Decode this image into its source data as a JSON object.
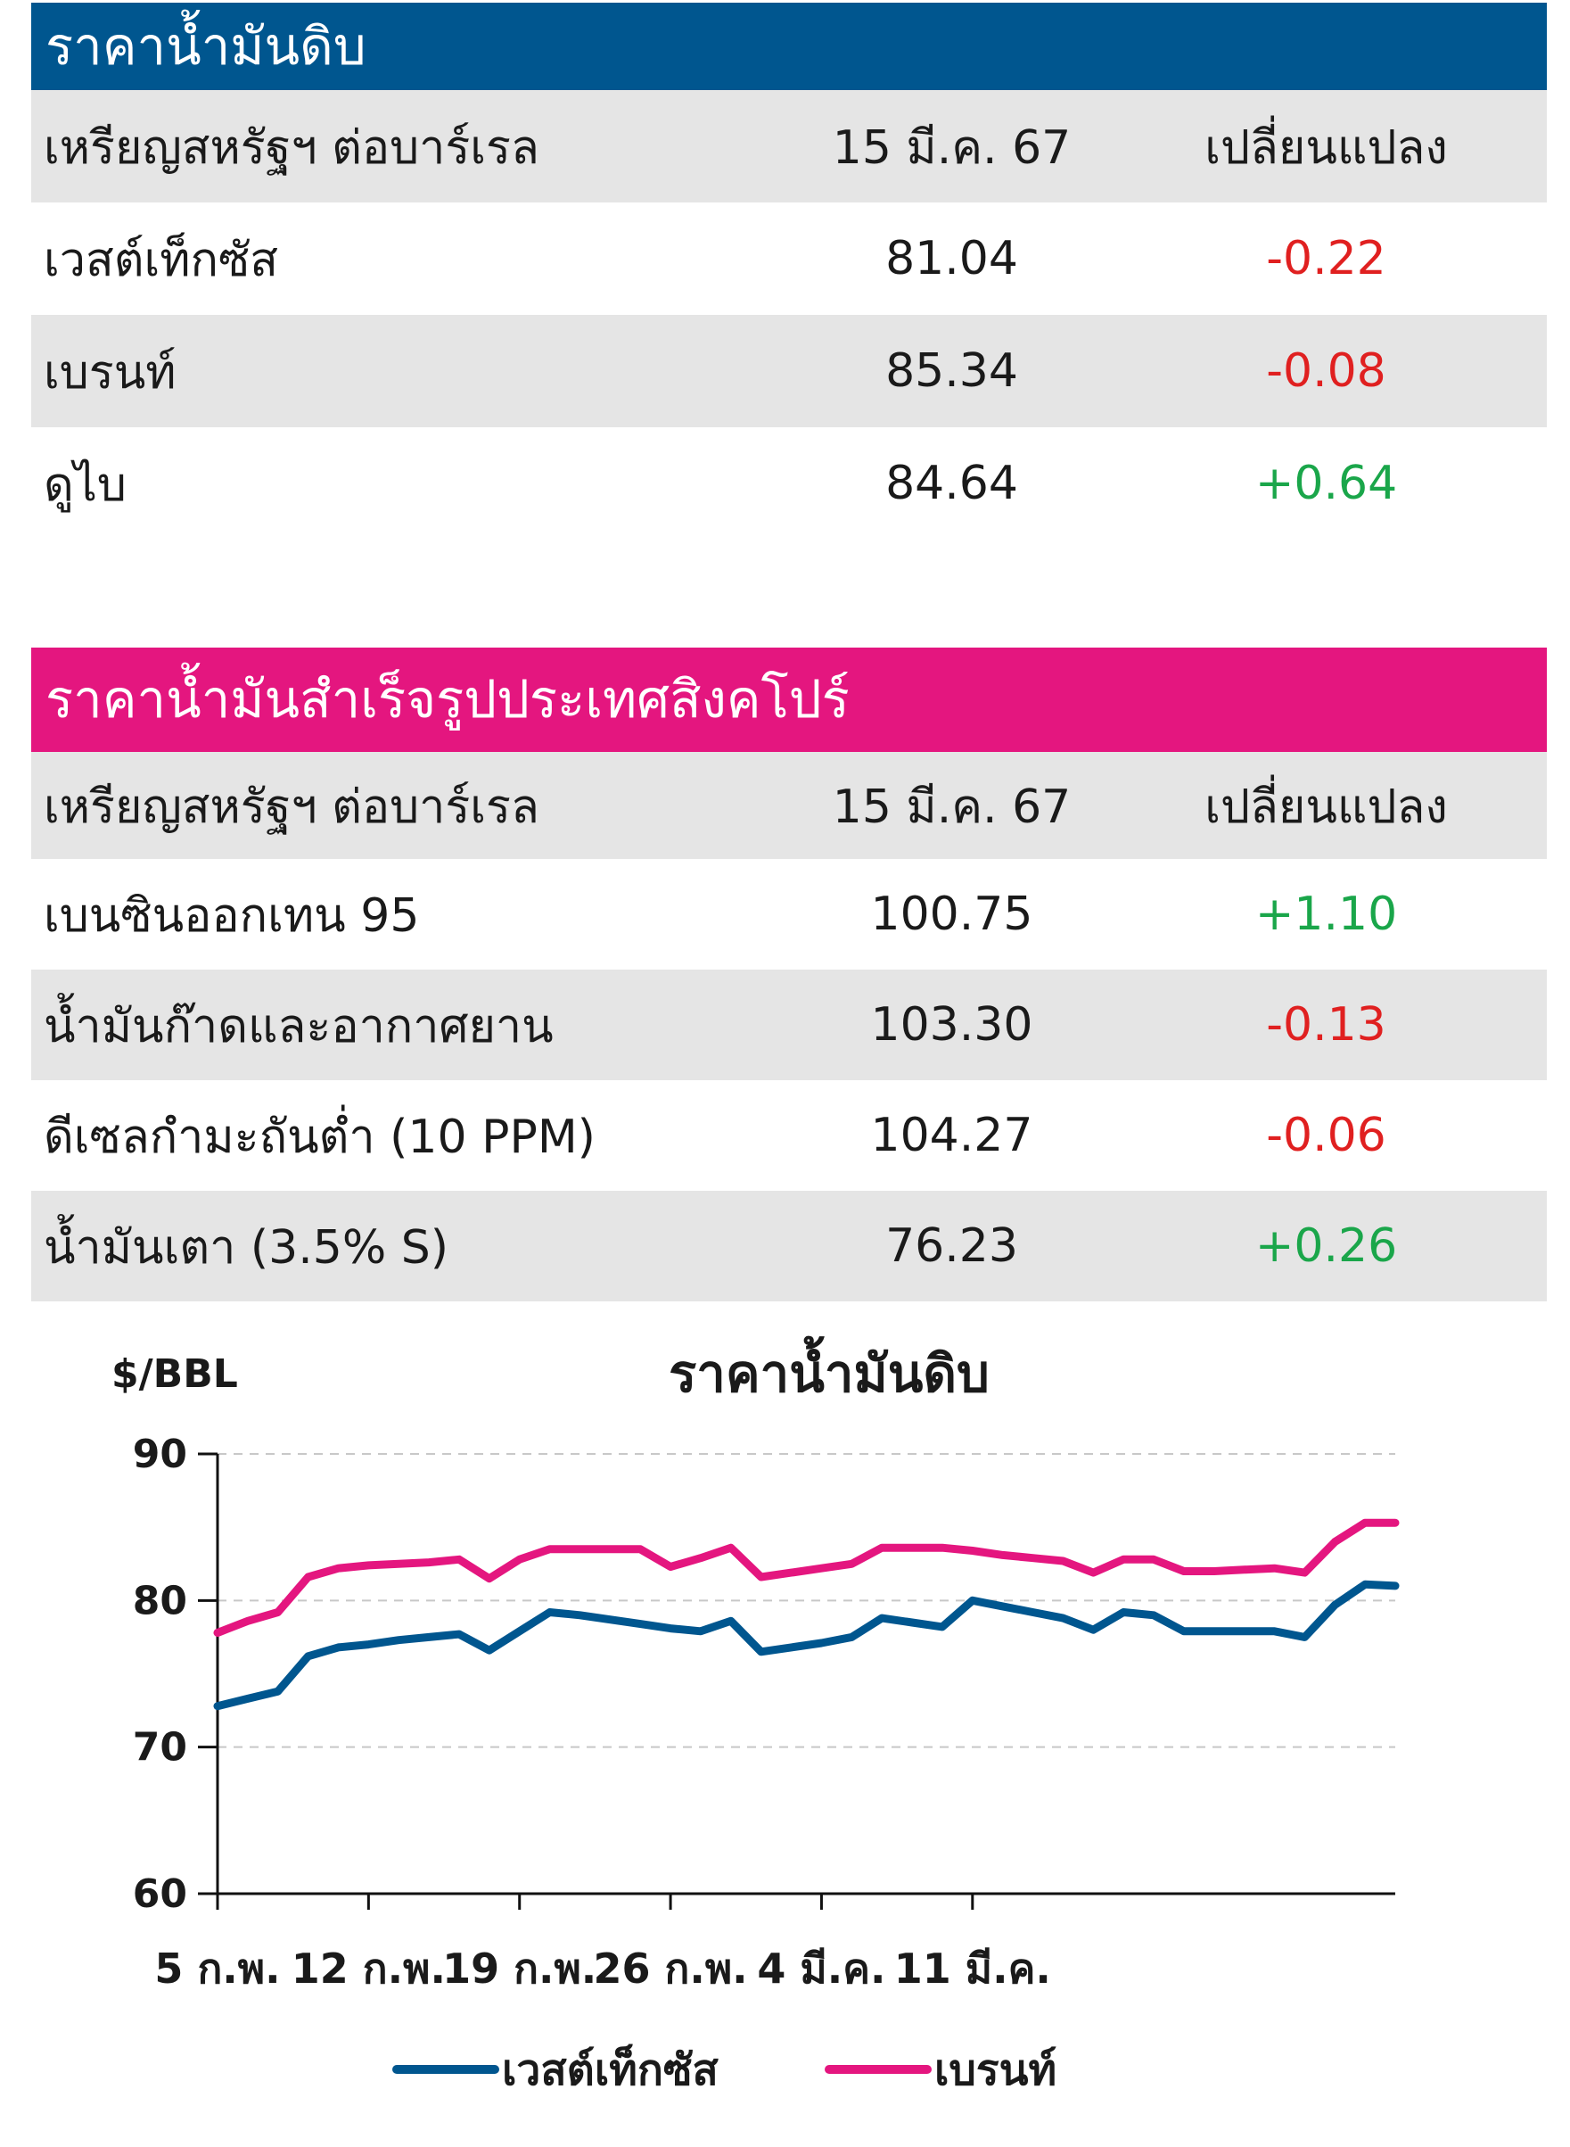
{
  "crude_table": {
    "title": "ราคาน้ำมันดิบ",
    "header": {
      "label": "เหรียญสหรัฐฯ ต่อบาร์เรล",
      "date": "15 มี.ค. 67",
      "change": "เปลี่ยนแปลง"
    },
    "rows": [
      {
        "name": "เวสต์เท็กซัส",
        "price": "81.04",
        "change": "-0.22"
      },
      {
        "name": "เบรนท์",
        "price": "85.34",
        "change": "-0.08"
      },
      {
        "name": "ดูไบ",
        "price": "84.64",
        "change": "+0.64"
      }
    ]
  },
  "singapore_table": {
    "title": "ราคาน้ำมันสำเร็จรูปประเทศสิงคโปร์",
    "header": {
      "label": "เหรียญสหรัฐฯ ต่อบาร์เรล",
      "date": "15 มี.ค. 67",
      "change": "เปลี่ยนแปลง"
    },
    "rows": [
      {
        "name": "เบนซินออกเทน 95",
        "price": "100.75",
        "change": "+1.10"
      },
      {
        "name": "น้ำมันก๊าดและอากาศยาน",
        "price": "103.30",
        "change": "-0.13"
      },
      {
        "name": "ดีเซลกำมะถันต่ำ (10 PPM)",
        "price": "104.27",
        "change": "-0.06"
      },
      {
        "name": "น้ำมันเตา (3.5% S)",
        "price": "76.23",
        "change": "+0.26"
      }
    ]
  },
  "colors": {
    "navy": "#00568f",
    "magenta": "#e4167f",
    "negative": "#e02020",
    "positive": "#1aa64a"
  },
  "chart_data": {
    "type": "line",
    "title": "ราคาน้ำมันดิบ",
    "ylabel": "$/BBL",
    "xlabel": "",
    "ylim": [
      60,
      90
    ],
    "yticks": [
      60,
      70,
      80,
      90
    ],
    "grid": "horizontal dashed",
    "legend_position": "bottom",
    "x_tick_labels": [
      "5 ก.พ.",
      "12 ก.พ.",
      "19 ก.พ.",
      "26 ก.พ.",
      "4 มี.ค.",
      "11 มี.ค."
    ],
    "series": [
      {
        "name": "เวสต์เท็กซัส",
        "color": "#00568f",
        "values": [
          72.8,
          73.3,
          73.8,
          76.2,
          76.8,
          77.0,
          77.3,
          77.5,
          77.7,
          76.6,
          77.9,
          79.2,
          79.0,
          78.7,
          78.4,
          78.1,
          77.9,
          78.6,
          76.5,
          76.8,
          77.1,
          77.5,
          78.8,
          78.5,
          78.2,
          80.0,
          79.6,
          79.2,
          78.8,
          78.0,
          79.2,
          79.0,
          77.9,
          77.9,
          77.9,
          77.9,
          77.5,
          79.7,
          81.1,
          81.0
        ]
      },
      {
        "name": "เบรนท์",
        "color": "#e4167f",
        "values": [
          77.8,
          78.6,
          79.2,
          81.6,
          82.2,
          82.4,
          82.5,
          82.6,
          82.8,
          81.5,
          82.8,
          83.5,
          83.5,
          83.5,
          83.5,
          82.3,
          82.9,
          83.6,
          81.6,
          81.9,
          82.2,
          82.5,
          83.6,
          83.6,
          83.6,
          83.4,
          83.1,
          82.9,
          82.7,
          81.9,
          82.8,
          82.8,
          82.0,
          82.0,
          82.1,
          82.2,
          81.9,
          84.0,
          85.3,
          85.3
        ]
      }
    ]
  }
}
